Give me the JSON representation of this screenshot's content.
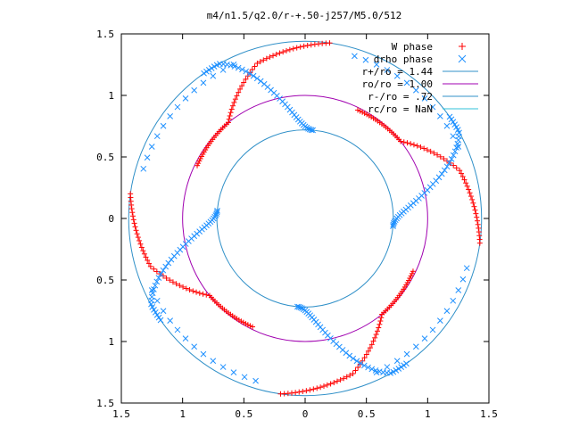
{
  "chart_data": {
    "type": "scatter",
    "title": "m4/n1.5/q2.0/r-+.50-j257/M5.0/512",
    "xlabel": "",
    "ylabel": "",
    "xlim": [
      -1.5,
      1.5
    ],
    "ylim": [
      -1.5,
      1.5
    ],
    "x_tick_labels": [
      "1.5",
      "1",
      "0.5",
      "0",
      "0.5",
      "1",
      "1.5"
    ],
    "y_tick_labels": [
      "1.5",
      "1",
      "0.5",
      "0",
      "0.5",
      "1",
      "1.5"
    ],
    "grid": false,
    "legend_position": "top-right",
    "legend": [
      {
        "label": "W phase",
        "marker": "+",
        "color": "#ff0000"
      },
      {
        "label": "drho phase",
        "marker": "x",
        "color": "#1e90ff"
      },
      {
        "label": "r+/ro = 1.44",
        "marker": "line",
        "color": "#3090c8"
      },
      {
        "label": "ro/ro = 1.00",
        "marker": "line",
        "color": "#a000b0"
      },
      {
        "label": "r-/ro = .72",
        "marker": "line",
        "color": "#3090c8"
      },
      {
        "label": "rc/ro = NaN",
        "marker": "line",
        "color": "#30c0d8"
      }
    ],
    "circles": [
      {
        "name": "r+/ro",
        "radius": 1.44
      },
      {
        "name": "ro/ro",
        "radius": 1.0
      },
      {
        "name": "r-/ro",
        "radius": 0.72
      }
    ],
    "series": [
      {
        "name": "W phase",
        "color": "#ff0000",
        "marker": "+",
        "angles_deg": [
          5,
          19,
          33,
          47,
          61,
          75,
          89,
          103,
          117,
          131,
          145,
          159,
          173,
          187,
          201,
          215,
          229,
          243,
          257,
          271,
          285,
          299,
          313,
          327,
          341,
          355
        ],
        "spiral_pieces": [
          {
            "r": [
              1.45,
              1.33
            ],
            "theta_deg": [
              82,
              108
            ]
          },
          {
            "r": [
              1.33,
              1.02
            ],
            "theta_deg": [
              108,
              131
            ]
          },
          {
            "r": [
              1.02,
              0.98
            ],
            "theta_deg": [
              131,
              153
            ]
          },
          {
            "r": [
              1.45,
              1.33
            ],
            "theta_deg": [
              172,
              198
            ]
          },
          {
            "r": [
              1.33,
              1.02
            ],
            "theta_deg": [
              198,
              221
            ]
          },
          {
            "r": [
              1.02,
              0.98
            ],
            "theta_deg": [
              221,
              243
            ]
          },
          {
            "r": [
              1.45,
              1.33
            ],
            "theta_deg": [
              262,
              288
            ]
          },
          {
            "r": [
              1.33,
              1.02
            ],
            "theta_deg": [
              288,
              311
            ]
          },
          {
            "r": [
              1.02,
              0.98
            ],
            "theta_deg": [
              311,
              333
            ]
          },
          {
            "r": [
              1.45,
              1.33
            ],
            "theta_deg": [
              352,
              378
            ]
          },
          {
            "r": [
              1.33,
              1.02
            ],
            "theta_deg": [
              378,
              41
            ]
          },
          {
            "r": [
              1.02,
              0.98
            ],
            "theta_deg": [
              41,
              63
            ]
          }
        ]
      },
      {
        "name": "drho phase",
        "color": "#1e90ff",
        "marker": "x",
        "hooks_center_deg": [
          105,
          195,
          285,
          15
        ]
      }
    ]
  }
}
